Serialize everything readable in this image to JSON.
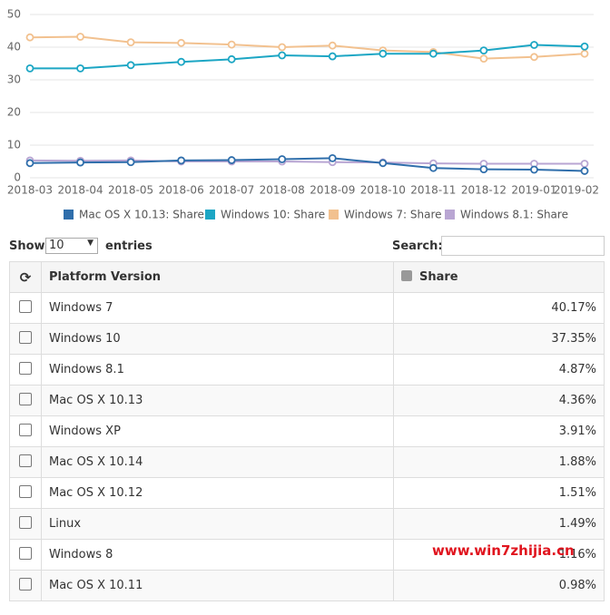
{
  "chart_data": {
    "type": "line",
    "categories": [
      "2018-03",
      "2018-04",
      "2018-05",
      "2018-06",
      "2018-07",
      "2018-08",
      "2018-09",
      "2018-10",
      "2018-11",
      "2018-12",
      "2019-01",
      "2019-02"
    ],
    "series": [
      {
        "name": "Mac OS X 10.13: Share",
        "color": "#2f6eab",
        "values": [
          4.5,
          4.7,
          4.8,
          5.3,
          5.4,
          5.7,
          6.0,
          4.5,
          3.0,
          2.6,
          2.5,
          2.1
        ]
      },
      {
        "name": "Windows 10: Share",
        "color": "#1ca6c4",
        "values": [
          33.5,
          33.5,
          34.5,
          35.5,
          36.3,
          37.5,
          37.2,
          38.0,
          38.0,
          39.0,
          40.7,
          40.2
        ]
      },
      {
        "name": "Windows 7: Share",
        "color": "#f2c18f",
        "values": [
          43.0,
          43.2,
          41.5,
          41.3,
          40.8,
          40.0,
          40.5,
          39.0,
          38.5,
          36.5,
          37.0,
          38.0
        ]
      },
      {
        "name": "Windows 8.1: Share",
        "color": "#b9a6d3",
        "values": [
          5.3,
          5.2,
          5.3,
          5.0,
          5.0,
          5.0,
          4.8,
          4.7,
          4.4,
          4.3,
          4.3,
          4.3
        ]
      }
    ],
    "ylim": [
      0,
      50
    ],
    "yticks": [
      0,
      10,
      20,
      30,
      40,
      50
    ],
    "grid": true
  },
  "table": {
    "show": "Show",
    "page_size": "10",
    "entries": "entries",
    "search": "Search:",
    "headers": [
      "Platform Version",
      "Share"
    ],
    "rows": [
      [
        "Windows 7",
        "40.17%"
      ],
      [
        "Windows 10",
        "37.35%"
      ],
      [
        "Windows 8.1",
        "4.87%"
      ],
      [
        "Mac OS X 10.13",
        "4.36%"
      ],
      [
        "Windows XP",
        "3.91%"
      ],
      [
        "Mac OS X 10.14",
        "1.88%"
      ],
      [
        "Mac OS X 10.12",
        "1.51%"
      ],
      [
        "Linux",
        "1.49%"
      ],
      [
        "Windows 8",
        "1.16%"
      ],
      [
        "Mac OS X 10.11",
        "0.98%"
      ]
    ]
  },
  "watermark": "www.win7zhijia.cn"
}
